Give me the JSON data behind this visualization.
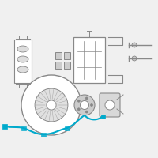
{
  "bg_color": "#f0f0f0",
  "line_color": "#888888",
  "highlight_color": "#00AACC",
  "fig_size": [
    2.0,
    2.0
  ],
  "dpi": 100
}
